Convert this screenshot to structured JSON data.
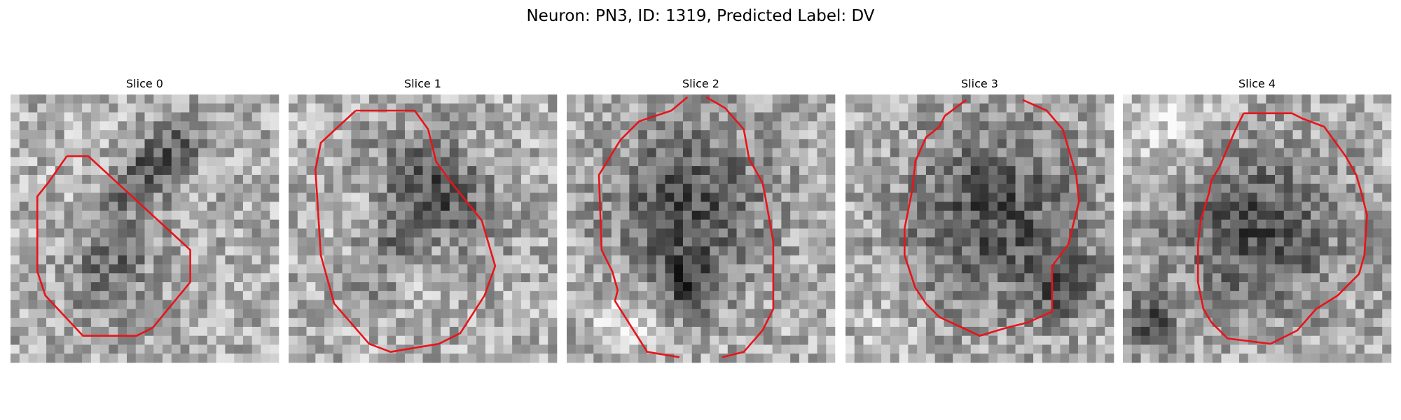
{
  "title": "Neuron: PN3, ID: 1319, Predicted Label: DV",
  "panels": [
    {
      "title": "Slice 0"
    },
    {
      "title": "Slice 1"
    },
    {
      "title": "Slice 2"
    },
    {
      "title": "Slice 3"
    },
    {
      "title": "Slice 4"
    }
  ]
}
